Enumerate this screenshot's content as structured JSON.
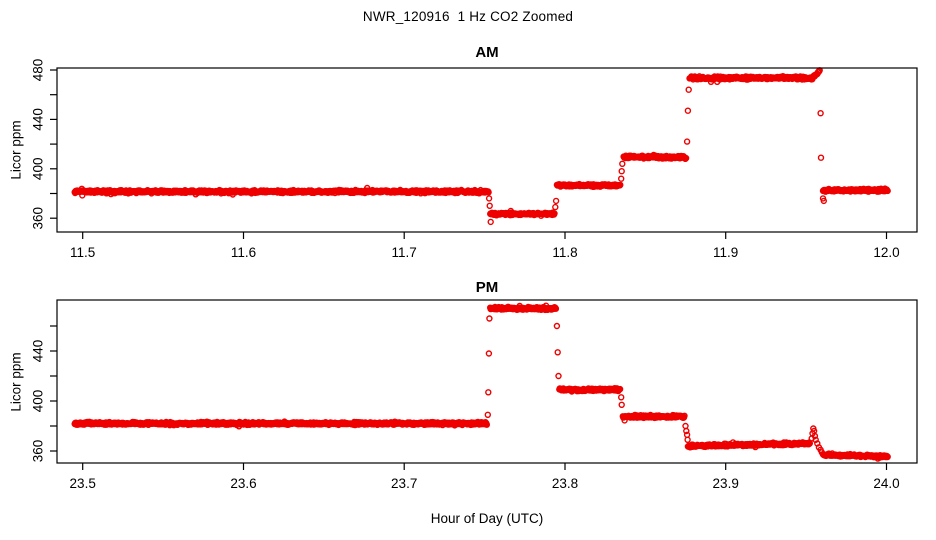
{
  "title": "NWR_120916  1 Hz CO2 Zoomed",
  "xlabel": "Hour of Day (UTC)",
  "marker_color": "#ee0000",
  "chart_data": [
    {
      "type": "scatter",
      "panel": "AM",
      "title": "AM",
      "ylabel": "Licor ppm",
      "marker": "open-circle",
      "color": "#ee0000",
      "grid": false,
      "xlim": [
        11.484,
        12.019
      ],
      "ylim": [
        348.8,
        481.6
      ],
      "xticks": [
        11.5,
        11.6,
        11.7,
        11.8,
        11.9,
        12.0
      ],
      "xtick_labels": [
        "11.5",
        "11.6",
        "11.7",
        "11.8",
        "11.9",
        "12.0"
      ],
      "yticks": [
        360,
        380,
        400,
        420,
        440,
        460,
        480
      ],
      "ytick_labels": [
        "360",
        "",
        "400",
        "",
        "440",
        "",
        "480"
      ],
      "points_per_hour": 3600,
      "segments": [
        {
          "x0": 11.495,
          "x1": 11.7525,
          "y": 381.5,
          "noise": 1.6
        },
        {
          "x0": 11.7535,
          "x1": 11.7935,
          "y": 363.5,
          "noise": 1.5
        },
        {
          "x0": 11.795,
          "x1": 11.8345,
          "y": 386.5,
          "noise": 1.6
        },
        {
          "x0": 11.8365,
          "x1": 11.8755,
          "y": 409.5,
          "noise": 1.6
        },
        {
          "x0": 11.8775,
          "x1": 11.954,
          "y": 473.5,
          "noise": 1.7
        },
        {
          "x0": 11.954,
          "x1": 11.9585,
          "y": 474,
          "y1": 479.5,
          "noise": 2.0
        },
        {
          "x0": 11.9605,
          "x1": 12.001,
          "y": 382.5,
          "noise": 1.6
        }
      ],
      "transition_points": [
        [
          11.7528,
          376
        ],
        [
          11.7532,
          370
        ],
        [
          11.7538,
          357
        ],
        [
          11.794,
          369
        ],
        [
          11.7945,
          374
        ],
        [
          11.835,
          392
        ],
        [
          11.8353,
          398
        ],
        [
          11.8357,
          404
        ],
        [
          11.876,
          422
        ],
        [
          11.8765,
          447
        ],
        [
          11.877,
          464
        ],
        [
          11.959,
          445
        ],
        [
          11.9593,
          409
        ],
        [
          11.9605,
          376
        ],
        [
          11.961,
          374
        ]
      ]
    },
    {
      "type": "scatter",
      "panel": "PM",
      "title": "PM",
      "ylabel": "Licor ppm",
      "marker": "open-circle",
      "color": "#ee0000",
      "grid": false,
      "xlim": [
        23.484,
        24.019
      ],
      "ylim": [
        350.4,
        480.8
      ],
      "xticks": [
        23.5,
        23.6,
        23.7,
        23.8,
        23.9,
        24.0
      ],
      "xtick_labels": [
        "23.5",
        "23.6",
        "23.7",
        "23.8",
        "23.9",
        "24.0"
      ],
      "yticks": [
        360,
        380,
        400,
        420,
        440,
        460
      ],
      "ytick_labels": [
        "360",
        "",
        "400",
        "",
        "440",
        ""
      ],
      "points_per_hour": 3600,
      "segments": [
        {
          "x0": 23.495,
          "x1": 23.7515,
          "y": 382,
          "noise": 1.6
        },
        {
          "x0": 23.7535,
          "x1": 23.7945,
          "y": 474,
          "noise": 1.7
        },
        {
          "x0": 23.7965,
          "x1": 23.8345,
          "y": 409,
          "noise": 1.6
        },
        {
          "x0": 23.836,
          "x1": 23.8745,
          "y": 387.5,
          "noise": 1.5
        },
        {
          "x0": 23.8765,
          "x1": 23.9525,
          "y": 364,
          "y1": 366,
          "noise": 1.5
        },
        {
          "x0": 23.9605,
          "x1": 24.001,
          "y": 357,
          "y1": 355.5,
          "noise": 1.3
        }
      ],
      "transition_points": [
        [
          23.752,
          389
        ],
        [
          23.7523,
          407
        ],
        [
          23.7527,
          438
        ],
        [
          23.753,
          466
        ],
        [
          23.795,
          460
        ],
        [
          23.7955,
          439
        ],
        [
          23.796,
          420
        ],
        [
          23.835,
          403
        ],
        [
          23.8353,
          397
        ],
        [
          23.875,
          380
        ],
        [
          23.8755,
          376
        ],
        [
          23.876,
          373
        ],
        [
          23.8763,
          369
        ],
        [
          23.9535,
          370
        ],
        [
          23.954,
          374
        ],
        [
          23.9545,
          378
        ],
        [
          23.955,
          376
        ],
        [
          23.9555,
          372
        ],
        [
          23.956,
          369
        ],
        [
          23.957,
          366
        ],
        [
          23.958,
          363
        ],
        [
          23.959,
          361
        ],
        [
          23.9598,
          359
        ]
      ]
    }
  ]
}
